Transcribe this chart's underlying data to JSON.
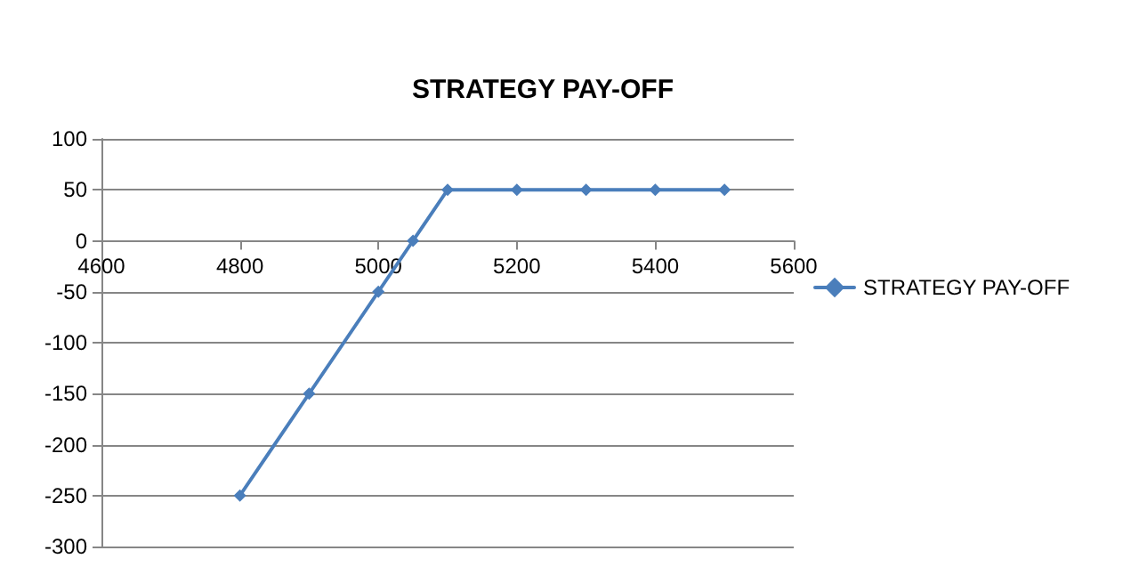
{
  "chart_data": {
    "type": "line",
    "title": "STRATEGY PAY-OFF",
    "x": [
      4800,
      4900,
      5000,
      5050,
      5100,
      5200,
      5300,
      5400,
      5500
    ],
    "series": [
      {
        "name": "STRATEGY PAY-OFF",
        "color": "#4a7ebb",
        "values": [
          -250,
          -150,
          -50,
          0,
          50,
          50,
          50,
          50,
          50
        ]
      }
    ],
    "xlim": [
      4600,
      5600
    ],
    "xticks": [
      4600,
      4800,
      5000,
      5200,
      5400,
      5600
    ],
    "ylim": [
      -300,
      100
    ],
    "yticks": [
      -300,
      -250,
      -200,
      -150,
      -100,
      -50,
      0,
      50,
      100
    ],
    "grid": "y",
    "legend": "right",
    "marker": "diamond",
    "line_style": "solid"
  }
}
